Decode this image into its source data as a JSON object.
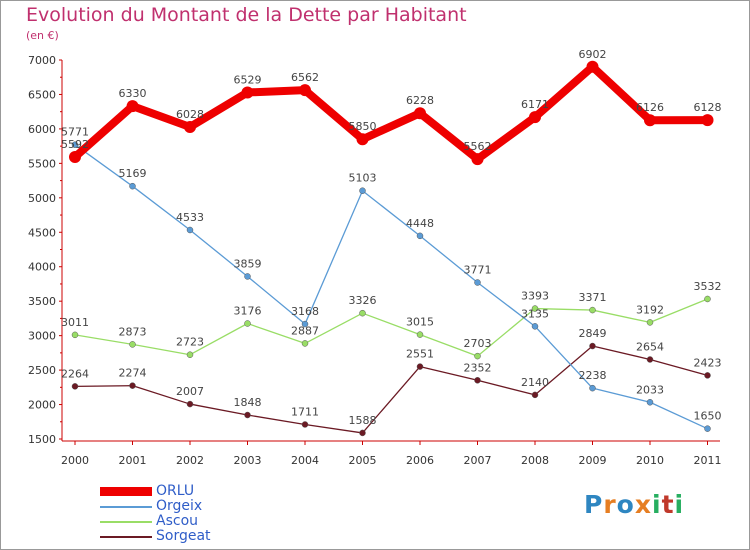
{
  "chart_data": {
    "type": "line",
    "title": "Evolution du Montant de la Dette par Habitant",
    "subtitle": "(en €)",
    "xlabel": "",
    "ylabel": "",
    "categories": [
      "2000",
      "2001",
      "2002",
      "2003",
      "2004",
      "2005",
      "2006",
      "2007",
      "2008",
      "2009",
      "2010",
      "2011"
    ],
    "ylim": [
      1500,
      7000
    ],
    "yticks": [
      "1500",
      "2000",
      "2500",
      "3000",
      "3500",
      "4000",
      "4500",
      "5000",
      "5500",
      "6000",
      "6500",
      "7000"
    ],
    "grid": false,
    "legend_position": "bottom-left",
    "series": [
      {
        "name": "ORLU",
        "color": "#ee0000",
        "values": [
          5592,
          6330,
          6028,
          6529,
          6562,
          5850,
          6228,
          5562,
          6171,
          6902,
          6126,
          6128
        ],
        "labels": [
          "5592",
          "6330",
          "6028",
          "6529",
          "6562",
          "5850",
          "6228",
          "5562",
          "6171",
          "6902",
          "6126",
          "6128"
        ]
      },
      {
        "name": "Orgeix",
        "color": "#5b9bd5",
        "values": [
          5771,
          5169,
          4533,
          3859,
          3168,
          5103,
          4448,
          3771,
          3135,
          2238,
          2033,
          1650
        ],
        "labels": [
          "5771",
          "5169",
          "4533",
          "3859",
          "3168",
          "5103",
          "4448",
          "3771",
          "3135",
          "2238",
          "2033",
          "1650"
        ]
      },
      {
        "name": "Ascou",
        "color": "#99dd66",
        "values": [
          3011,
          2873,
          2723,
          3176,
          2887,
          3326,
          3015,
          2703,
          3393,
          3371,
          3192,
          3532
        ],
        "labels": [
          "3011",
          "2873",
          "2723",
          "3176",
          "2887",
          "3326",
          "3015",
          "2703",
          "3393",
          "3371",
          "3192",
          "3532"
        ]
      },
      {
        "name": "Sorgeat",
        "color": "#6b1a24",
        "values": [
          2264,
          2274,
          2007,
          1848,
          1711,
          1588,
          2551,
          2352,
          2140,
          2849,
          2654,
          2423
        ],
        "labels": [
          "2264",
          "2274",
          "2007",
          "1848",
          "1711",
          "1588",
          "2551",
          "2352",
          "2140",
          "2849",
          "2654",
          "2423"
        ]
      }
    ]
  },
  "logo": {
    "letters": [
      "P",
      "r",
      "o",
      "x",
      "i",
      "t",
      "i"
    ],
    "colors": [
      "#2e86c1",
      "#e67e22",
      "#2e86c1",
      "#e67e22",
      "#27ae60",
      "#c0392b",
      "#27ae60"
    ]
  }
}
